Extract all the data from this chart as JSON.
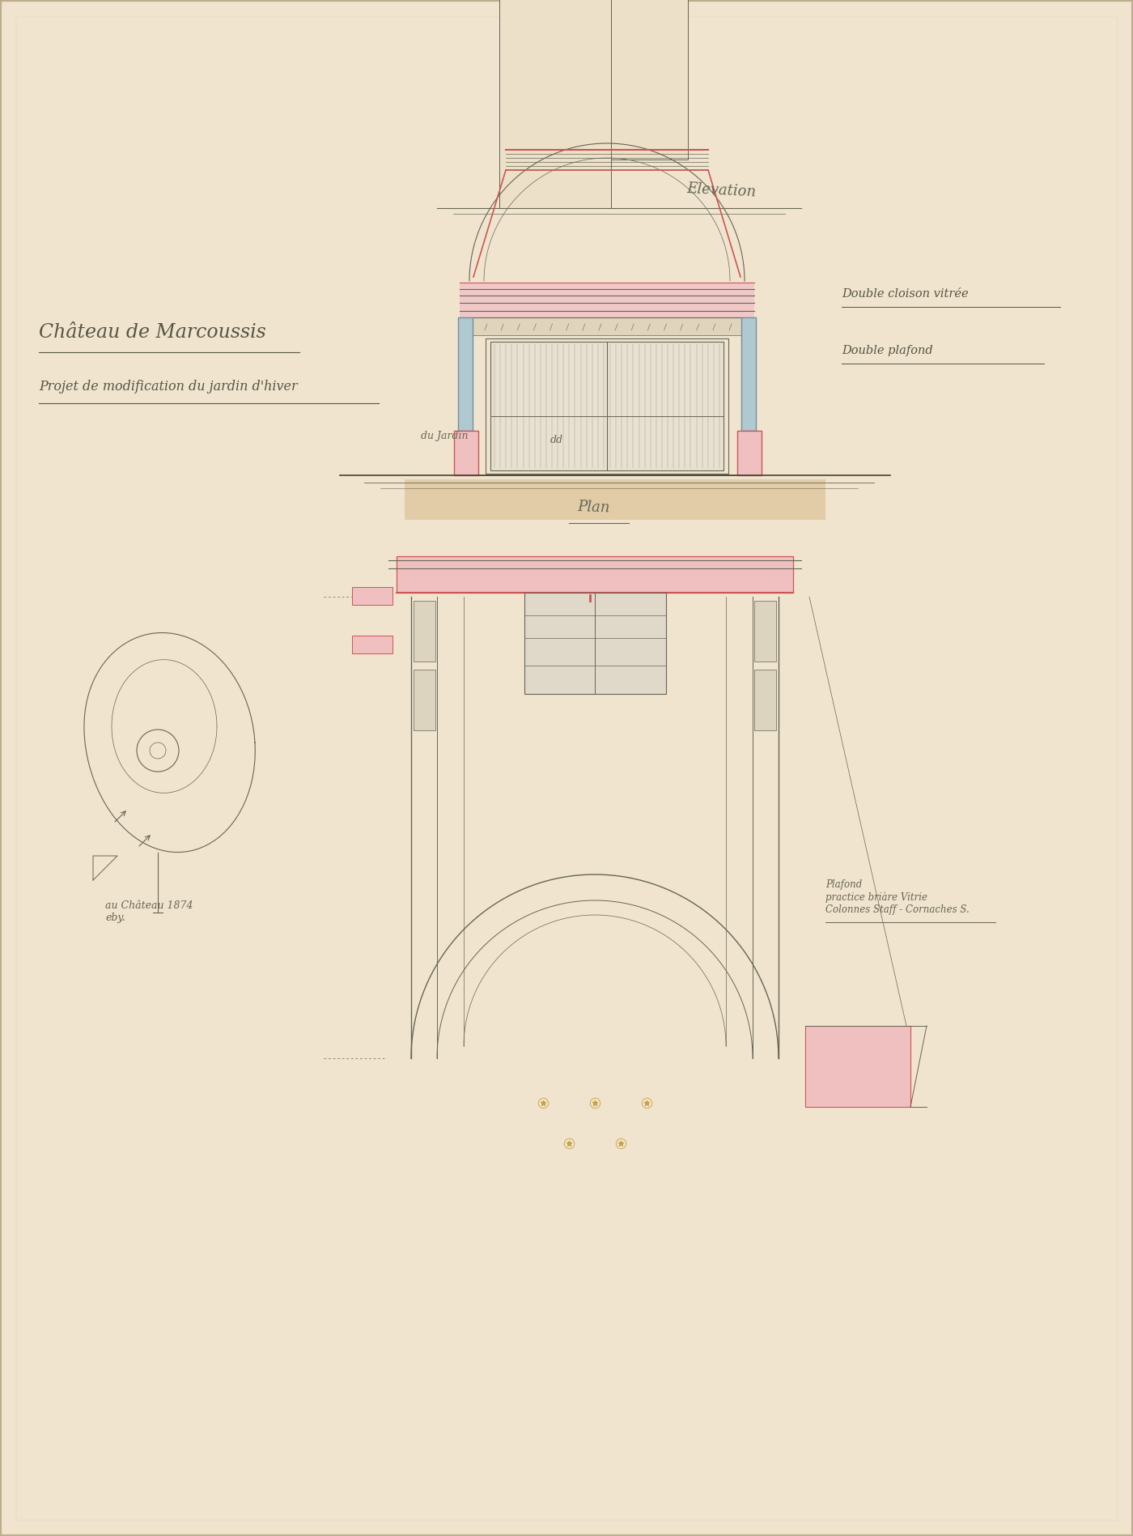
{
  "bg_color": "#f2e6d0",
  "paper_color": "#f0e4ce",
  "line_color": "#666655",
  "line_color_dark": "#444433",
  "red_color": "#e8a0a0",
  "blue_color": "#7090a0",
  "pink_color": "#e8b0b0",
  "pink_fill": "#f0c0c0",
  "tan_color": "#c8a882",
  "gold_color": "#c8a040",
  "title_main": "Château de Marcoussis",
  "title_sub": "Projet de modification du jardin d'hiver",
  "label_elevation": "Elevation",
  "label_plan": "Plan",
  "label_right1": "Double cloison vitrée",
  "label_right2": "Double plafond",
  "label_left_ground": "du Jardin",
  "label_left_ground2": "dd",
  "label_note": "Plafond\npractice briàre Vitrie\nColonnes Staff - Cornaches S.",
  "label_date": "au Château 1874\neby."
}
